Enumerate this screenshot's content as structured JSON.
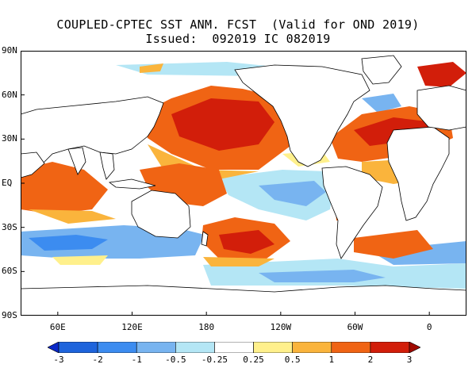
{
  "title_line1": "COUPLED-CPTEC SST ANM. FCST  (Valid for OND 2019)",
  "title_line2": "Issued:  092019 IC 082019",
  "lat_ticks": [
    {
      "label": "90N",
      "lat": 90
    },
    {
      "label": "60N",
      "lat": 60
    },
    {
      "label": "30N",
      "lat": 30
    },
    {
      "label": "EQ",
      "lat": 0
    },
    {
      "label": "30S",
      "lat": -30
    },
    {
      "label": "60S",
      "lat": -60
    },
    {
      "label": "90S",
      "lat": -90
    }
  ],
  "lon_ticks": [
    {
      "label": "60E",
      "lon": 60
    },
    {
      "label": "120E",
      "lon": 120
    },
    {
      "label": "180",
      "lon": 180
    },
    {
      "label": "120W",
      "lon": 240
    },
    {
      "label": "60W",
      "lon": 300
    },
    {
      "label": "0",
      "lon": 360
    }
  ],
  "map_extent": {
    "lon_min": 30,
    "lon_max": 390,
    "lat_min": -90,
    "lat_max": 90
  },
  "colorbar": {
    "levels": [
      "-3",
      "-2",
      "-1",
      "-0.5",
      "-0.25",
      "0.25",
      "0.5",
      "1",
      "2",
      "3"
    ],
    "colors": [
      "#0a28c8",
      "#1e64dc",
      "#3c8cf0",
      "#78b4f0",
      "#b4e6f5",
      "#ffffff",
      "#fff08c",
      "#fab43c",
      "#f06414",
      "#d21e0a",
      "#a00a00"
    ]
  },
  "colors": {
    "land": "#ffffff",
    "coast": "#000000"
  }
}
